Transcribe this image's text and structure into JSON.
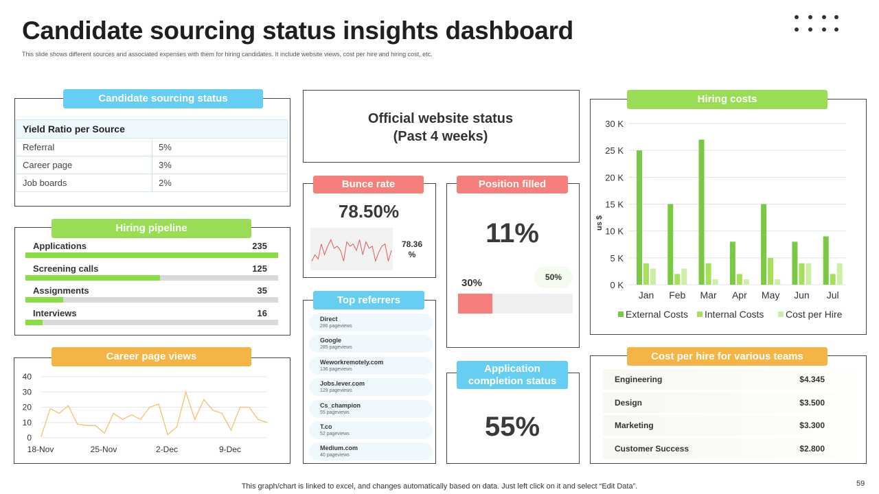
{
  "header": {
    "title": "Candidate sourcing status insights dashboard",
    "subtitle": "This slide shows different sources and associated expenses with them for hiring candidates. It include website views, cost per hire and hiring cost, etc."
  },
  "sourcing": {
    "title": "Candidate sourcing status",
    "table_header": "Yield Ratio per Source",
    "rows": [
      {
        "source": "Referral",
        "ratio": "5%"
      },
      {
        "source": "Career page",
        "ratio": "3%"
      },
      {
        "source": "Job boards",
        "ratio": "2%"
      }
    ]
  },
  "pipeline": {
    "title": "Hiring pipeline",
    "max": 235,
    "items": [
      {
        "label": "Applications",
        "value": 235
      },
      {
        "label": "Screening calls",
        "value": 125
      },
      {
        "label": "Assignments",
        "value": 35
      },
      {
        "label": "Interviews",
        "value": 16
      }
    ]
  },
  "career_views": {
    "title": "Career page views"
  },
  "website": {
    "title_line1": "Official website status",
    "title_line2": "(Past 4 weeks)"
  },
  "bounce": {
    "title": "Bunce rate",
    "value": "78.50%",
    "side_value_line1": "78.36",
    "side_value_line2": "%",
    "spark": [
      3,
      6,
      4,
      11,
      6,
      10,
      13,
      9,
      10,
      8,
      3,
      12,
      10,
      11,
      8,
      13,
      6,
      12,
      9,
      10,
      3,
      7,
      10,
      11,
      3,
      8
    ]
  },
  "position": {
    "title": "Position filled",
    "value": "11%",
    "bar_value_label": "30%",
    "bar_value": 0.3,
    "target_label": "50%"
  },
  "application": {
    "title_line1": "Application",
    "title_line2": "completion status",
    "value": "55%"
  },
  "referrers": {
    "title": "Top referrers",
    "items": [
      {
        "name": "Direct",
        "views": "286 pageviews"
      },
      {
        "name": "Google",
        "views": "285 pageviews"
      },
      {
        "name": "Weworkremotely.com",
        "views": "136 pageviews"
      },
      {
        "name": "Jobs.lever.com",
        "views": "129 pageviews"
      },
      {
        "name": "Cs_champion",
        "views": "55 pageviews"
      },
      {
        "name": "T.co",
        "views": "52 pageviews"
      },
      {
        "name": "Medium.com",
        "views": "40 pageviews"
      }
    ]
  },
  "hiring_costs": {
    "title": "Hiring costs"
  },
  "team_costs": {
    "title": "Cost per hire for various teams",
    "items": [
      {
        "team": "Engineering",
        "cost": "$4.345"
      },
      {
        "team": "Design",
        "cost": "$3.500"
      },
      {
        "team": "Marketing",
        "cost": "$3.300"
      },
      {
        "team": "Customer Success",
        "cost": "$2.800"
      }
    ]
  },
  "colors": {
    "external": "#7ac943",
    "internal": "#a6e05a",
    "per_hire": "#cdeea6",
    "views_line": "#f5c16c",
    "spark_line": "#e05a5a"
  },
  "footer": {
    "note": "This graph/chart is linked to excel, and changes automatically based on data. Just left click on it and select “Edit Data”.",
    "page": "59"
  },
  "chart_data": [
    {
      "type": "bar",
      "title": "Hiring costs",
      "xlabel": "",
      "ylabel": "us $",
      "ylim": [
        0,
        30000
      ],
      "yticks": [
        "0 K",
        "5 K",
        "10 K",
        "15 K",
        "20 K",
        "25 K",
        "30 K"
      ],
      "categories": [
        "Jan",
        "Feb",
        "Mar",
        "Apr",
        "May",
        "Jun",
        "Jul"
      ],
      "series": [
        {
          "name": "External Costs",
          "values": [
            25000,
            15000,
            27000,
            8000,
            15000,
            8000,
            9000
          ]
        },
        {
          "name": "Internal Costs",
          "values": [
            4000,
            2000,
            4000,
            2000,
            5000,
            4000,
            2000
          ]
        },
        {
          "name": "Cost per Hire",
          "values": [
            3000,
            3000,
            1000,
            1000,
            1000,
            4000,
            4000
          ]
        }
      ],
      "legend": "bottom"
    },
    {
      "type": "line",
      "title": "Career page views",
      "ylim": [
        0,
        40
      ],
      "yticks": [
        "0",
        "10",
        "20",
        "30",
        "40"
      ],
      "xticks": [
        "18-Nov",
        "25-Nov",
        "2-Dec",
        "9-Dec"
      ],
      "values": [
        1,
        19,
        16,
        21,
        9,
        8,
        8,
        3,
        16,
        12,
        15,
        12,
        20,
        22,
        2,
        7,
        30,
        12,
        25,
        18,
        16,
        5,
        20,
        20,
        12,
        10
      ]
    }
  ]
}
